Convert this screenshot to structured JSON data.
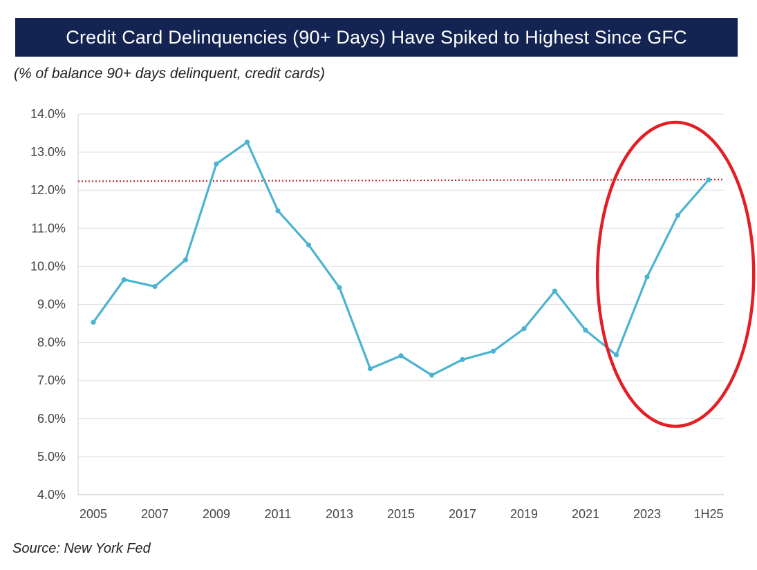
{
  "chart_data": {
    "type": "line",
    "title": "Credit Card Delinquencies (90+ Days) Have Spiked to Highest Since GFC",
    "subtitle": "(% of balance 90+ days delinquent, credit cards)",
    "source": "Source: New York Fed",
    "ylim": [
      4.0,
      14.0
    ],
    "yticks": [
      "4.0%",
      "5.0%",
      "6.0%",
      "7.0%",
      "8.0%",
      "9.0%",
      "10.0%",
      "11.0%",
      "12.0%",
      "13.0%",
      "14.0%"
    ],
    "categories": [
      "2005",
      "2006",
      "2007",
      "2008",
      "2009",
      "2010",
      "2011",
      "2012",
      "2013",
      "2014",
      "2015",
      "2016",
      "2017",
      "2018",
      "2019",
      "2020",
      "2021",
      "2022",
      "2023",
      "2024",
      "1H25"
    ],
    "xtick_labels": [
      "2005",
      "2007",
      "2009",
      "2011",
      "2013",
      "2015",
      "2017",
      "2019",
      "2021",
      "2023",
      "1H25"
    ],
    "series": [
      {
        "name": "Credit card 90+ days delinquent",
        "color": "#4bb3d1",
        "values": [
          8.53,
          9.65,
          9.47,
          10.17,
          12.69,
          13.26,
          11.46,
          10.56,
          9.44,
          7.31,
          7.65,
          7.14,
          7.55,
          7.77,
          8.36,
          9.35,
          8.32,
          7.67,
          9.72,
          11.34,
          12.27
        ]
      }
    ],
    "reference_line": {
      "value": 12.26,
      "color": "#c0272d",
      "style": "dotted"
    },
    "highlight": {
      "shape": "ellipse",
      "color": "#e31e24",
      "from_category": "2022",
      "to_category": "1H25"
    },
    "grid": true
  }
}
